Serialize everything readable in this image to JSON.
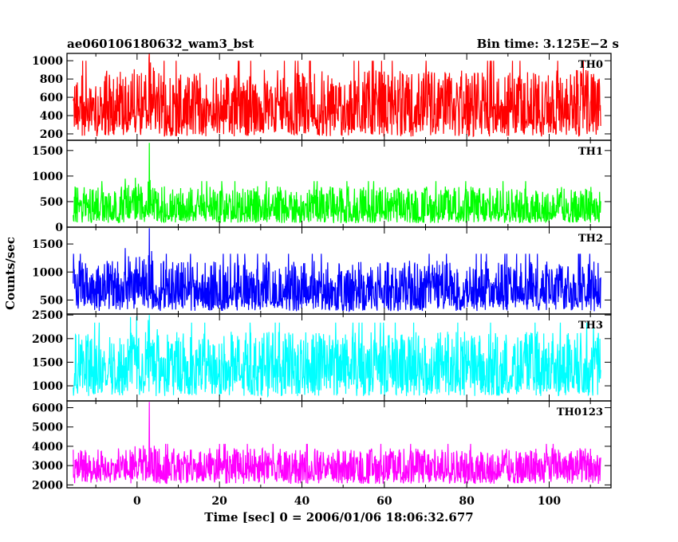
{
  "header": {
    "file_name": "ae060106180632_wam3_bst",
    "bin_time": "Bin time: 3.125E−2 s"
  },
  "chart_data": {
    "type": "line",
    "xlabel": "Time [sec] 0 = 2006/01/06 18:06:32.677",
    "ylabel": "Counts/sec",
    "xlim": [
      -17,
      115
    ],
    "xticks": [
      0,
      20,
      40,
      60,
      80,
      100
    ],
    "x_tick_labels": [
      "0",
      "20",
      "40",
      "60",
      "80",
      "100"
    ],
    "data_x_range": [
      -15.5,
      112.5
    ],
    "grid": false,
    "panels": [
      {
        "name": "TH0",
        "color": "#ff0000",
        "ylim": [
          130,
          1080
        ],
        "yticks": [
          200,
          400,
          600,
          800,
          1000
        ],
        "y_tick_labels": [
          "200",
          "400",
          "600",
          "800",
          "1000"
        ],
        "baseline": 500,
        "envelope_low": 170,
        "envelope_high": 900,
        "peak": {
          "x": 3,
          "y": 1080
        }
      },
      {
        "name": "TH1",
        "color": "#00ff00",
        "ylim": [
          0,
          1700
        ],
        "yticks": [
          0,
          500,
          1000,
          1500
        ],
        "y_tick_labels": [
          "0",
          "500",
          "1000",
          "1500"
        ],
        "baseline": 400,
        "envelope_low": 80,
        "envelope_high": 800,
        "peak": {
          "x": 3,
          "y": 1650
        }
      },
      {
        "name": "TH2",
        "color": "#0000ff",
        "ylim": [
          250,
          1800
        ],
        "yticks": [
          500,
          1000,
          1500
        ],
        "y_tick_labels": [
          "500",
          "1000",
          "1500"
        ],
        "baseline": 700,
        "envelope_low": 300,
        "envelope_high": 1200,
        "peak": {
          "x": 3,
          "y": 1780
        }
      },
      {
        "name": "TH3",
        "color": "#00ffff",
        "ylim": [
          680,
          2520
        ],
        "yticks": [
          1000,
          1500,
          2000,
          2500
        ],
        "y_tick_labels": [
          "1000",
          "1500",
          "2000",
          "2500"
        ],
        "baseline": 1400,
        "envelope_low": 780,
        "envelope_high": 2150,
        "peak": {
          "x": 3,
          "y": 2500
        }
      },
      {
        "name": "TH0123",
        "color": "#ff00ff",
        "ylim": [
          1850,
          6350
        ],
        "yticks": [
          2000,
          3000,
          4000,
          5000,
          6000
        ],
        "y_tick_labels": [
          "2000",
          "3000",
          "4000",
          "5000",
          "6000"
        ],
        "baseline": 3000,
        "envelope_low": 2050,
        "envelope_high": 3900,
        "peak": {
          "x": 3,
          "y": 6300
        }
      }
    ]
  }
}
